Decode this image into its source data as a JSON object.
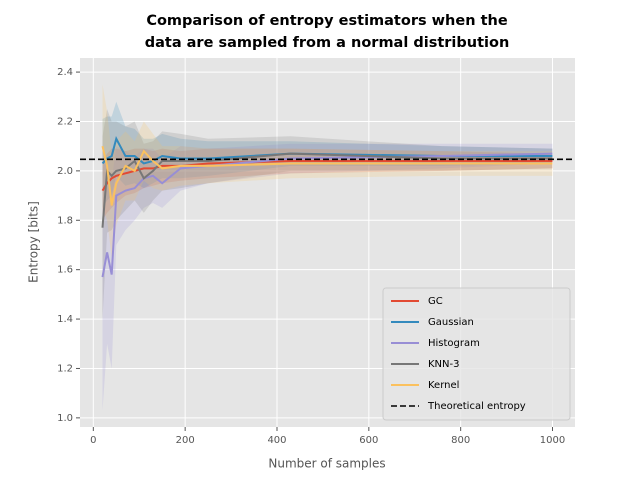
{
  "chart_data": {
    "type": "line",
    "title": [
      "Comparison of entropy estimators when the",
      "data are sampled from a normal distribution"
    ],
    "xlabel": "Number of samples",
    "ylabel": "Entropy [bits]",
    "x": [
      20,
      30,
      40,
      50,
      70,
      90,
      110,
      130,
      150,
      190,
      250,
      430,
      760,
      1000
    ],
    "series": [
      {
        "name": "GC",
        "color": "#E24A33",
        "values": [
          1.92,
          1.95,
          1.97,
          1.98,
          1.99,
          2.0,
          2.01,
          2.01,
          2.02,
          2.02,
          2.03,
          2.04,
          2.04,
          2.04
        ],
        "lower": [
          1.8,
          1.83,
          1.85,
          1.87,
          1.9,
          1.91,
          1.93,
          1.94,
          1.95,
          1.96,
          1.97,
          1.99,
          2.0,
          2.01
        ],
        "upper": [
          2.04,
          2.07,
          2.09,
          2.09,
          2.08,
          2.09,
          2.09,
          2.08,
          2.09,
          2.08,
          2.09,
          2.09,
          2.08,
          2.07
        ]
      },
      {
        "name": "Gaussian",
        "color": "#348ABD",
        "values": [
          2.03,
          2.05,
          2.06,
          2.13,
          2.06,
          2.06,
          2.03,
          2.04,
          2.06,
          2.05,
          2.05,
          2.07,
          2.06,
          2.06
        ],
        "lower": [
          1.85,
          1.88,
          1.9,
          1.98,
          1.94,
          1.95,
          1.93,
          1.95,
          1.97,
          1.97,
          1.98,
          2.02,
          2.02,
          2.03
        ],
        "upper": [
          2.21,
          2.22,
          2.22,
          2.28,
          2.18,
          2.17,
          2.13,
          2.13,
          2.15,
          2.13,
          2.12,
          2.12,
          2.1,
          2.09
        ]
      },
      {
        "name": "Histogram",
        "color": "#988ED5",
        "values": [
          1.57,
          1.67,
          1.58,
          1.9,
          1.92,
          1.93,
          1.97,
          1.98,
          1.95,
          2.01,
          2.02,
          2.05,
          2.06,
          2.07
        ],
        "lower": [
          1.03,
          1.3,
          1.2,
          1.7,
          1.76,
          1.8,
          1.85,
          1.87,
          1.85,
          1.92,
          1.95,
          1.99,
          2.01,
          2.03
        ],
        "upper": [
          2.11,
          2.04,
          1.96,
          2.1,
          2.08,
          2.06,
          2.09,
          2.09,
          2.05,
          2.1,
          2.09,
          2.11,
          2.11,
          2.11
        ]
      },
      {
        "name": "KNN-3",
        "color": "#777777",
        "values": [
          1.77,
          2.0,
          1.98,
          2.0,
          2.01,
          2.04,
          1.97,
          2.0,
          2.04,
          2.04,
          2.04,
          2.07,
          2.05,
          2.05
        ],
        "lower": [
          1.4,
          1.75,
          1.76,
          1.8,
          1.84,
          1.88,
          1.83,
          1.88,
          1.92,
          1.93,
          1.95,
          2.0,
          2.0,
          2.01
        ],
        "upper": [
          2.14,
          2.25,
          2.2,
          2.2,
          2.18,
          2.2,
          2.11,
          2.12,
          2.16,
          2.15,
          2.13,
          2.14,
          2.1,
          2.09
        ]
      },
      {
        "name": "Kernel",
        "color": "#FBC15E",
        "values": [
          2.1,
          2.02,
          1.86,
          1.95,
          2.02,
          2.0,
          2.08,
          2.04,
          2.01,
          2.02,
          2.02,
          2.03,
          2.03,
          2.03
        ],
        "lower": [
          1.85,
          1.8,
          1.65,
          1.78,
          1.88,
          1.88,
          1.96,
          1.93,
          1.92,
          1.94,
          1.95,
          1.97,
          1.98,
          1.98
        ],
        "upper": [
          2.35,
          2.24,
          2.07,
          2.12,
          2.16,
          2.12,
          2.2,
          2.15,
          2.1,
          2.1,
          2.09,
          2.09,
          2.08,
          2.08
        ]
      }
    ],
    "reference": {
      "name": "Theoretical entropy",
      "value": 2.047,
      "color": "#000000"
    },
    "xlim": [
      -29,
      1049
    ],
    "ylim": [
      0.963,
      2.457
    ],
    "xticks": [
      0,
      200,
      400,
      600,
      800,
      1000
    ],
    "yticks": [
      {
        "value": 1.0,
        "label": "1.0"
      },
      1.2,
      1.4,
      1.6,
      1.8,
      {
        "value": 2.0,
        "label": "2.0"
      },
      2.2,
      2.4
    ],
    "grid": true,
    "legend": "lower right"
  }
}
